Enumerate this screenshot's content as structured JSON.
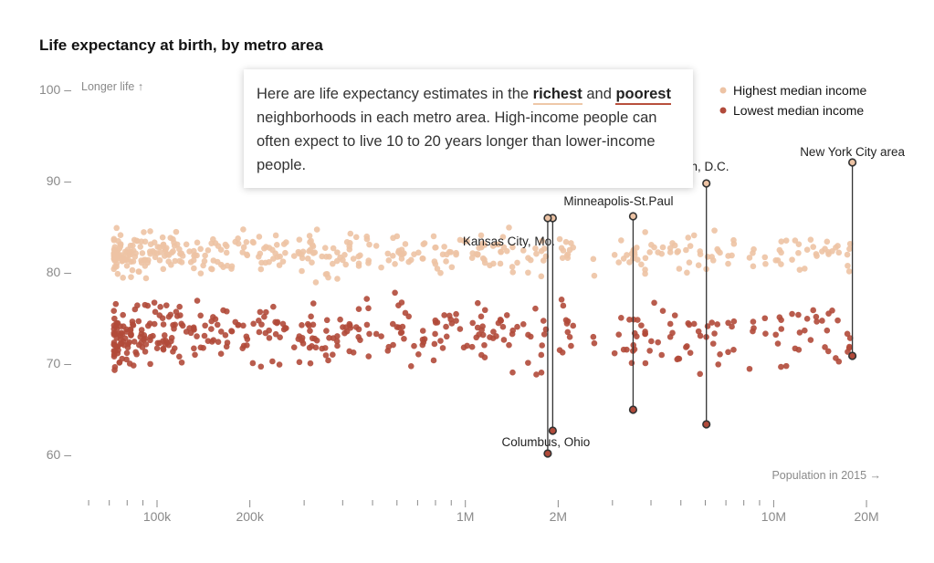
{
  "title": "Life expectancy at birth, by metro area",
  "y_note": "Longer life ↑",
  "x_note": "Population in 2015 →",
  "callout": {
    "prefix": "Here are life expectancy estimates in the ",
    "rich": "richest",
    "mid": " and ",
    "poor": "poorest",
    "suffix": " neighborhoods in each metro area. High-income people can often expect to live 10 to 20 years longer than lower-income people."
  },
  "colors": {
    "rich": "#edc3a4",
    "poor": "#b14a3a",
    "axis": "#8a8a8a",
    "line": "#333333"
  },
  "chart_data": {
    "type": "scatter",
    "title": "Life expectancy at birth, by metro area",
    "xlabel": "Population in 2015",
    "ylabel": "Longer life",
    "x_scale": "log",
    "xlim": [
      60000,
      25000000
    ],
    "ylim": [
      55,
      101
    ],
    "x_ticks": [
      {
        "value": 100000,
        "label": "100k"
      },
      {
        "value": 200000,
        "label": "200k"
      },
      {
        "value": 1000000,
        "label": "1M"
      },
      {
        "value": 2000000,
        "label": "2M"
      },
      {
        "value": 10000000,
        "label": "10M"
      },
      {
        "value": 20000000,
        "label": "20M"
      }
    ],
    "y_ticks": [
      {
        "value": 100,
        "label": "100 –"
      },
      {
        "value": 90,
        "label": "90 –"
      },
      {
        "value": 80,
        "label": "80 –"
      },
      {
        "value": 70,
        "label": "70 –"
      },
      {
        "value": 60,
        "label": "60 –"
      }
    ],
    "legend": {
      "position": "top-right"
    },
    "series": [
      {
        "name": "Highest median income",
        "key": "rich"
      },
      {
        "name": "Lowest median income",
        "key": "poor"
      }
    ],
    "highlighted": [
      {
        "label": "New York City area",
        "population": 18000000,
        "rich": 92,
        "poor": 70.8
      },
      {
        "label": "shington, D.C.",
        "population": 6050000,
        "rich": 89.7,
        "poor": 63.3
      },
      {
        "label": "Minneapolis-St.Paul",
        "population": 3500000,
        "rich": 86.1,
        "poor": 64.9
      },
      {
        "label": "Kansas City, Mo.",
        "population": 1920000,
        "rich": 85.9,
        "poor": 62.6
      },
      {
        "label": "Columbus, Ohio",
        "population": 1850000,
        "rich": 85.9,
        "poor": 60.1
      }
    ]
  }
}
